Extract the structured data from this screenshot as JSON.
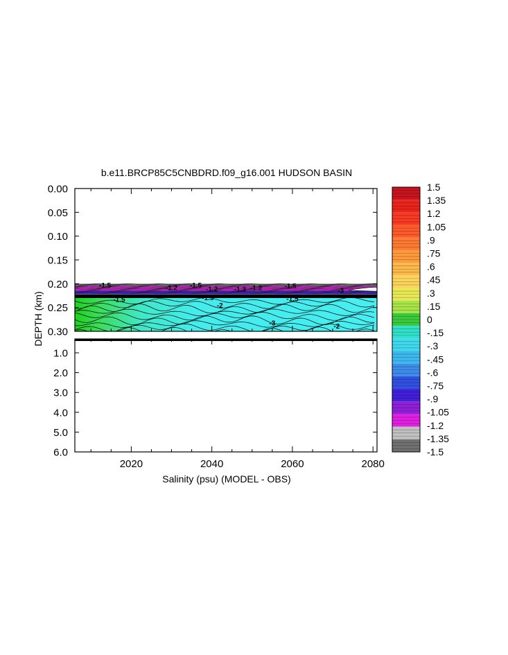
{
  "chart_data": {
    "type": "heatmap",
    "title": "b.e11.BRCP85C5CNBDRD.f09_g16.001 HUDSON BASIN",
    "xlabel": "Salinity (psu) (MODEL - OBS)",
    "ylabel": "DEPTH (km)",
    "xlim": [
      2006,
      2081
    ],
    "x_ticks": [
      "2020",
      "2040",
      "2060",
      "2080"
    ],
    "x_tick_values": [
      2020,
      2040,
      2060,
      2080
    ],
    "upper_panel": {
      "ylim": [
        0.0,
        0.3
      ],
      "y_ticks": [
        "0.00",
        "0.05",
        "0.10",
        "0.15",
        "0.20",
        "0.25",
        "0.30"
      ],
      "y_tick_values": [
        0.0,
        0.05,
        0.1,
        0.15,
        0.2,
        0.25,
        0.3
      ]
    },
    "lower_panel": {
      "ylim": [
        0.3,
        6.0
      ],
      "y_ticks": [
        "1.0",
        "2.0",
        "3.0",
        "4.0",
        "5.0",
        "6.0"
      ],
      "y_tick_values": [
        1.0,
        2.0,
        3.0,
        4.0,
        5.0,
        6.0
      ]
    },
    "colorbar": {
      "labels": [
        "1.5",
        "1.35",
        "1.2",
        "1.05",
        ".9",
        ".75",
        ".6",
        ".45",
        ".3",
        ".15",
        "0",
        "-.15",
        "-.3",
        "-.45",
        "-.6",
        "-.75",
        "-.9",
        "-1.05",
        "-1.2",
        "-1.35",
        "-1.5"
      ],
      "levels": [
        1.5,
        1.35,
        1.2,
        1.05,
        0.9,
        0.75,
        0.6,
        0.45,
        0.3,
        0.15,
        0.0,
        -0.15,
        -0.3,
        -0.45,
        -0.6,
        -0.75,
        -0.9,
        -1.05,
        -1.2,
        -1.35,
        -1.5
      ],
      "colors": [
        "#c8141e",
        "#e8241c",
        "#f83a24",
        "#fc5a2a",
        "#fc7a32",
        "#fc9a3c",
        "#fcb84a",
        "#fcd45c",
        "#e8e854",
        "#a8e448",
        "#3cc83c",
        "#30e0c8",
        "#40d8ec",
        "#3cb8ee",
        "#3c8ce8",
        "#3050e0",
        "#4020d8",
        "#9020d8",
        "#e020e0",
        "#c0c0c0",
        "#707070"
      ]
    },
    "layers": [
      {
        "depth_range": [
          0.2,
          0.205
        ],
        "value": -1.5
      },
      {
        "depth_range": [
          0.205,
          0.215
        ],
        "value": -1.2
      },
      {
        "depth_range": [
          0.215,
          0.222
        ],
        "value": -0.9
      },
      {
        "depth_range": [
          0.222,
          0.23
        ],
        "value": -1.5
      },
      {
        "depth_range": [
          0.23,
          0.305
        ],
        "value": -0.3
      }
    ],
    "contour_labels": [
      "-1.5",
      "-1.5",
      "-1.5",
      "-1.2",
      "-1.2",
      "-3",
      "-2",
      "-1.5",
      "-1.5",
      "-1.5",
      "-1.2",
      "-3",
      "-2",
      "-1.3"
    ]
  }
}
